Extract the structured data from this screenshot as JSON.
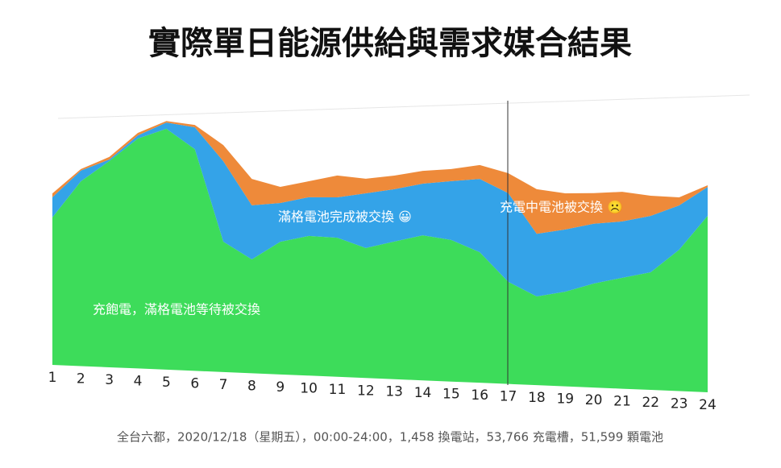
{
  "chart_data": {
    "type": "area",
    "stacked": true,
    "title": "實際單日能源供給與需求媒合結果",
    "caption": "全台六都，2020/12/18（星期五），00:00-24:00，1,458 換電站，53,766 充電槽，51,599 顆電池",
    "categories": [
      "1",
      "2",
      "3",
      "4",
      "5",
      "6",
      "7",
      "8",
      "9",
      "10",
      "11",
      "12",
      "13",
      "14",
      "15",
      "16",
      "17",
      "18",
      "19",
      "20",
      "21",
      "22",
      "23",
      "24"
    ],
    "ylim": [
      0,
      100
    ],
    "series": [
      {
        "name": "充飽電，滿格電池等待被交換",
        "color": "#3ddc5a",
        "values": [
          58.5,
          72.7,
          80.5,
          89,
          92.5,
          84.5,
          49.3,
          42.7,
          49.4,
          51.6,
          51,
          47.3,
          49.7,
          52,
          50.4,
          46.1,
          35.8,
          30.9,
          32.7,
          35.7,
          37.8,
          39.8,
          47.5,
          58.9
        ]
      },
      {
        "name": "滿格電池完成被交換 😀",
        "color": "#34a3e8",
        "values": [
          8,
          4.2,
          0.6,
          1.2,
          2.4,
          8.3,
          30.4,
          20.3,
          14.4,
          14.3,
          14.8,
          19.9,
          18.9,
          18.5,
          20.9,
          25.9,
          31.1,
          21.8,
          21.5,
          20.5,
          19.2,
          19.1,
          14.9,
          9.6
        ]
      },
      {
        "name": "充電中電池被交換 ☹️",
        "color": "#ee8a3a",
        "values": [
          1.5,
          0.6,
          1,
          1,
          0.6,
          0.9,
          6.1,
          9.9,
          6,
          5.9,
          8,
          5.3,
          4.9,
          4.6,
          4.3,
          4.9,
          7,
          15.5,
          12.5,
          10.5,
          10.1,
          6.8,
          2.7,
          0.6
        ]
      }
    ]
  }
}
